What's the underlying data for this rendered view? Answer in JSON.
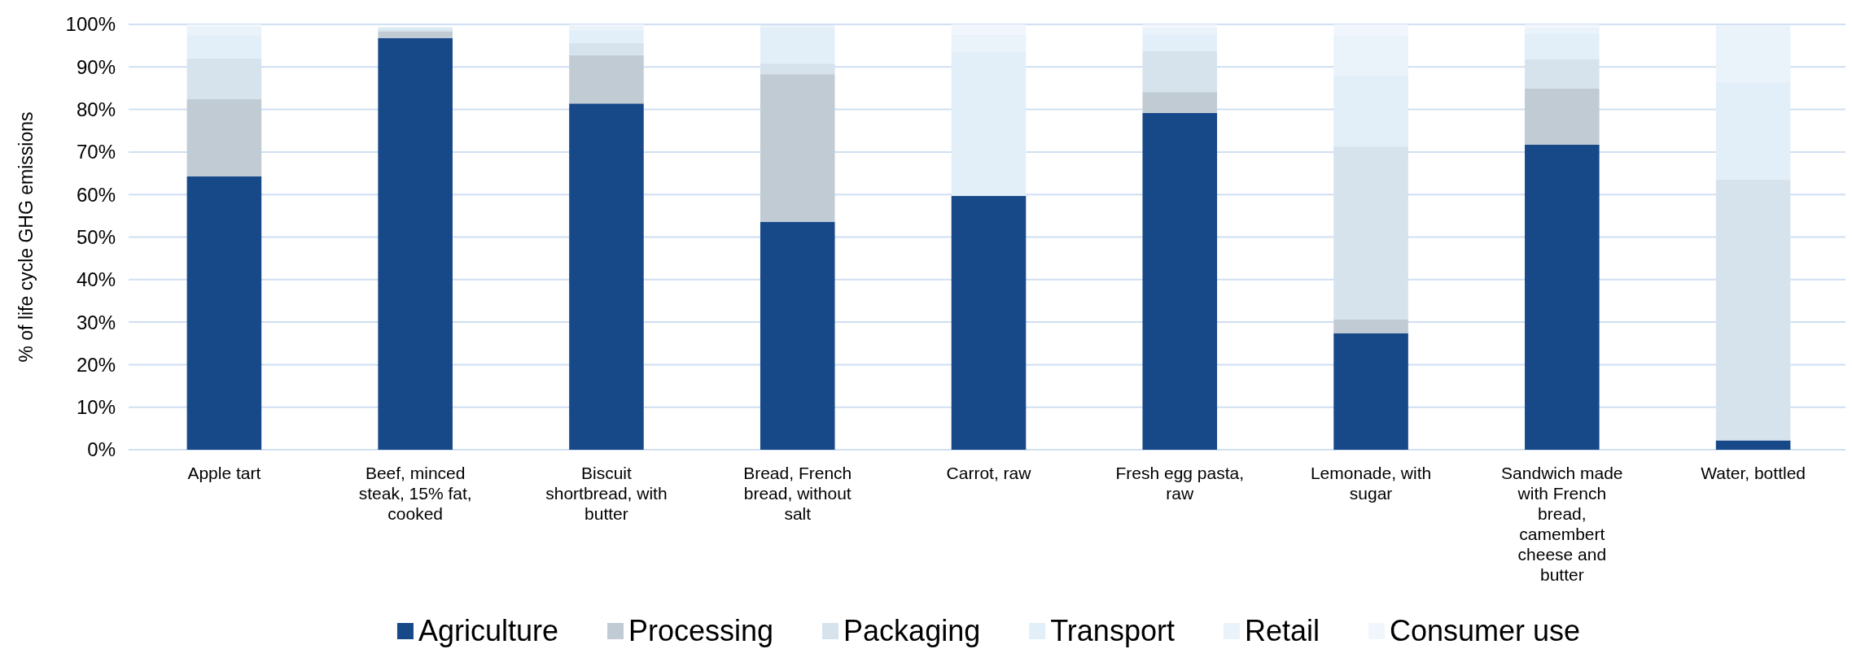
{
  "chart_data": {
    "type": "bar",
    "stacked": true,
    "ylabel": "% of life cycle GHG emissions",
    "categories": [
      "Apple tart",
      "Beef, minced steak, 15% fat, cooked",
      "Biscuit shortbread, with butter",
      "Bread, French bread, without salt",
      "Carrot, raw",
      "Fresh egg pasta, raw",
      "Lemonade, with sugar",
      "Sandwich made with French bread, camembert cheese and butter",
      "Water, bottled"
    ],
    "series": [
      {
        "name": "Agriculture",
        "color": "#174887",
        "values": [
          64.3,
          96.8,
          81.4,
          53.6,
          59.7,
          79.2,
          27.4,
          71.7,
          2.2
        ]
      },
      {
        "name": "Processing",
        "color": "#c0cbd4",
        "values": [
          18.1,
          1.6,
          11.4,
          34.7,
          0,
          4.9,
          3.3,
          13.2,
          0
        ]
      },
      {
        "name": "Packaging",
        "color": "#d6e3ed",
        "values": [
          9.6,
          0.6,
          2.9,
          2.5,
          0,
          9.7,
          40.6,
          6.9,
          61.4
        ]
      },
      {
        "name": "Transport",
        "color": "#e2eff8",
        "values": [
          5.5,
          0.4,
          2.9,
          8.5,
          33.9,
          4.0,
          16.7,
          6.2,
          22.9
        ]
      },
      {
        "name": "Retail",
        "color": "#eaf2fa",
        "values": [
          2.0,
          null,
          1.0,
          0.5,
          4.0,
          1.5,
          9.4,
          1.3,
          13.2
        ]
      },
      {
        "name": "Consumer use",
        "color": "#f1f6fd",
        "values": [
          0.5,
          null,
          0.4,
          null,
          2.4,
          0.7,
          2.6,
          0.7,
          null
        ]
      }
    ],
    "ylim": [
      0,
      100
    ],
    "yticks": [
      {
        "value": 0,
        "label": "0%"
      },
      {
        "value": 10,
        "label": "10%"
      },
      {
        "value": 20,
        "label": "20%"
      },
      {
        "value": 30,
        "label": "30%"
      },
      {
        "value": 40,
        "label": "40%"
      },
      {
        "value": 50,
        "label": "50%"
      },
      {
        "value": 60,
        "label": "60%"
      },
      {
        "value": 70,
        "label": "70%"
      },
      {
        "value": 80,
        "label": "80%"
      },
      {
        "value": 90,
        "label": "90%"
      },
      {
        "value": 100,
        "label": "100%"
      }
    ],
    "grid": "y",
    "legend": "bottom"
  }
}
